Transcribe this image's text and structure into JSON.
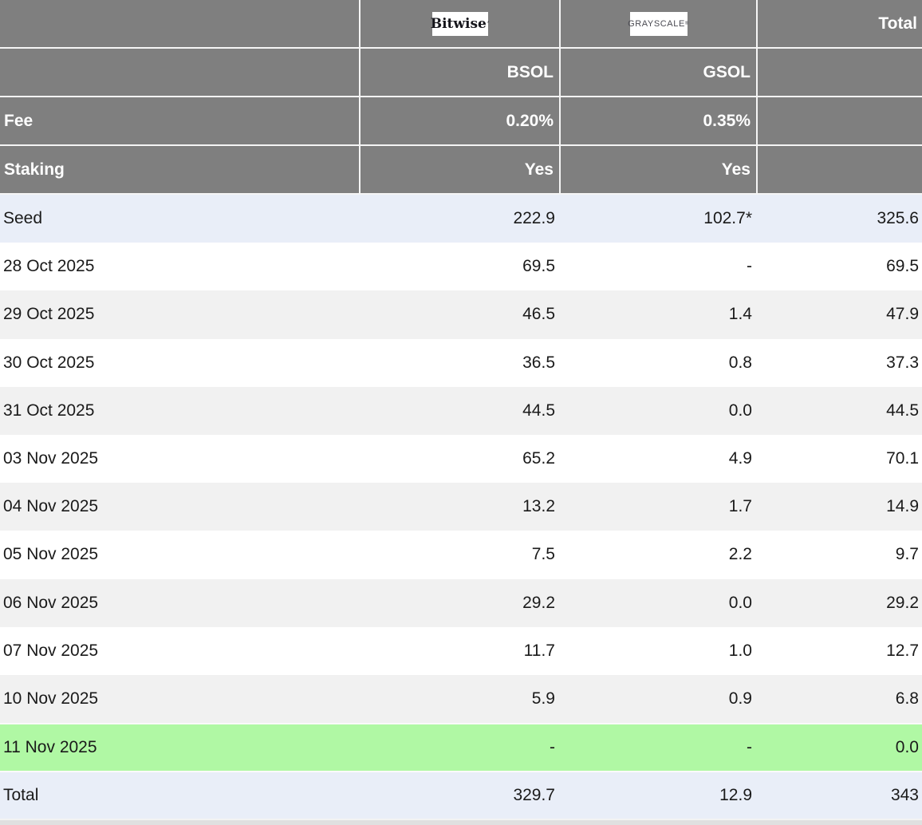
{
  "chart_data": {
    "type": "table",
    "header": {
      "providers": [
        {
          "name": "Bitwise",
          "logo_text": "Bitwise",
          "logo_mark": "’"
        },
        {
          "name": "Grayscale",
          "logo_text": "GRAYSCALE",
          "logo_mark": "®"
        }
      ],
      "total_label": "Total",
      "tickers": {
        "bsol": "BSOL",
        "gsol": "GSOL"
      },
      "fee": {
        "label": "Fee",
        "bsol": "0.20%",
        "gsol": "0.35%"
      },
      "staking": {
        "label": "Staking",
        "bsol": "Yes",
        "gsol": "Yes"
      }
    },
    "rows": [
      {
        "label": "Seed",
        "bsol": "222.9",
        "gsol": "102.7*",
        "total": "325.6",
        "highlight": "blue"
      },
      {
        "label": "28 Oct 2025",
        "bsol": "69.5",
        "gsol": "-",
        "total": "69.5",
        "highlight": "none"
      },
      {
        "label": "29 Oct 2025",
        "bsol": "46.5",
        "gsol": "1.4",
        "total": "47.9",
        "highlight": "stripe"
      },
      {
        "label": "30 Oct 2025",
        "bsol": "36.5",
        "gsol": "0.8",
        "total": "37.3",
        "highlight": "none"
      },
      {
        "label": "31 Oct 2025",
        "bsol": "44.5",
        "gsol": "0.0",
        "total": "44.5",
        "highlight": "stripe"
      },
      {
        "label": "03 Nov 2025",
        "bsol": "65.2",
        "gsol": "4.9",
        "total": "70.1",
        "highlight": "none"
      },
      {
        "label": "04 Nov 2025",
        "bsol": "13.2",
        "gsol": "1.7",
        "total": "14.9",
        "highlight": "stripe"
      },
      {
        "label": "05 Nov 2025",
        "bsol": "7.5",
        "gsol": "2.2",
        "total": "9.7",
        "highlight": "none"
      },
      {
        "label": "06 Nov 2025",
        "bsol": "29.2",
        "gsol": "0.0",
        "total": "29.2",
        "highlight": "stripe"
      },
      {
        "label": "07 Nov 2025",
        "bsol": "11.7",
        "gsol": "1.0",
        "total": "12.7",
        "highlight": "none"
      },
      {
        "label": "10 Nov 2025",
        "bsol": "5.9",
        "gsol": "0.9",
        "total": "6.8",
        "highlight": "stripe"
      },
      {
        "label": "11 Nov 2025",
        "bsol": "-",
        "gsol": "-",
        "total": "0.0",
        "highlight": "green"
      },
      {
        "label": "Total",
        "bsol": "329.7",
        "gsol": "12.9",
        "total": "343",
        "highlight": "blue-total"
      }
    ],
    "colors": {
      "header_bg": "#7f7f7f",
      "header_text": "#ffffff",
      "row_blue": "#e9eef8",
      "row_stripe": "#f1f1f1",
      "row_green": "#b0f8a4",
      "data_text": "#1a1a1a"
    }
  }
}
